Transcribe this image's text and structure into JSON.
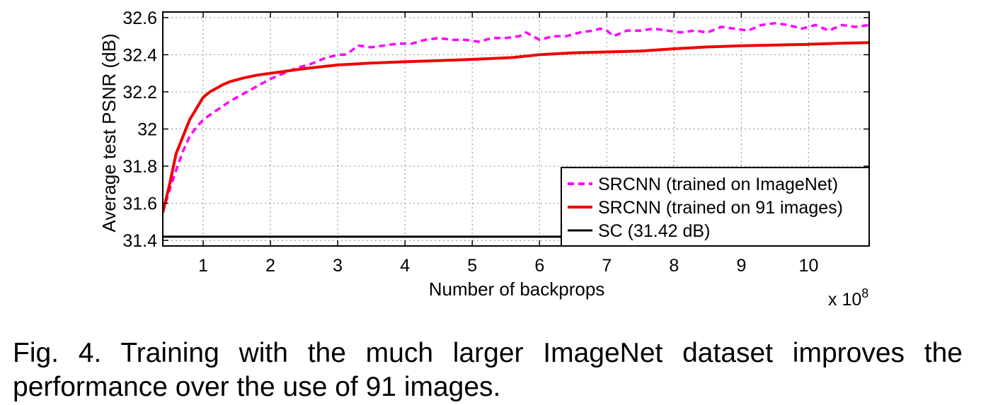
{
  "caption": "Fig. 4. Training with the much larger ImageNet dataset improves the performance over the use of 91 images.",
  "chart_data": {
    "type": "line",
    "xlabel": "Number of backprops",
    "ylabel": "Average test PSNR (dB)",
    "x_multiplier": "x 10",
    "x_multiplier_exponent": "8",
    "xlim": [
      0.4,
      10.9
    ],
    "ylim": [
      31.37,
      32.63
    ],
    "xticks": [
      1,
      2,
      3,
      4,
      5,
      6,
      7,
      8,
      9,
      10
    ],
    "xtick_labels": [
      "1",
      "2",
      "3",
      "4",
      "5",
      "6",
      "7",
      "8",
      "9",
      "10"
    ],
    "yticks": [
      31.4,
      31.6,
      31.8,
      32.0,
      32.2,
      32.4,
      32.6
    ],
    "ytick_labels": [
      "31.4",
      "31.6",
      "31.8",
      "32",
      "32.2",
      "32.4",
      "32.6"
    ],
    "grid": true,
    "legend_position": "bottom-right",
    "series": [
      {
        "name": "SRCNN (trained on ImageNet)",
        "color": "#ff00ff",
        "dash": "dashed",
        "x": [
          0.4,
          0.5,
          0.6,
          0.7,
          0.8,
          0.9,
          1.0,
          1.2,
          1.4,
          1.6,
          1.8,
          2.0,
          2.2,
          2.4,
          2.6,
          2.8,
          3.0,
          3.1,
          3.2,
          3.3,
          3.5,
          3.7,
          3.9,
          4.1,
          4.3,
          4.5,
          4.7,
          4.9,
          5.1,
          5.3,
          5.5,
          5.7,
          5.8,
          5.9,
          6.0,
          6.2,
          6.4,
          6.6,
          6.8,
          6.9,
          7.0,
          7.1,
          7.3,
          7.5,
          7.7,
          7.9,
          8.1,
          8.3,
          8.5,
          8.7,
          8.9,
          9.1,
          9.3,
          9.5,
          9.7,
          9.9,
          10.1,
          10.3,
          10.5,
          10.7,
          10.9
        ],
        "values": [
          31.55,
          31.67,
          31.78,
          31.88,
          31.96,
          32.01,
          32.05,
          32.1,
          32.15,
          32.19,
          32.23,
          32.27,
          32.3,
          32.33,
          32.35,
          32.38,
          32.4,
          32.4,
          32.42,
          32.45,
          32.44,
          32.45,
          32.46,
          32.46,
          32.48,
          32.49,
          32.48,
          32.48,
          32.47,
          32.49,
          32.49,
          32.5,
          32.52,
          32.5,
          32.48,
          32.5,
          32.5,
          32.52,
          32.53,
          32.54,
          32.53,
          32.5,
          32.53,
          32.53,
          32.54,
          32.53,
          32.52,
          32.53,
          32.52,
          32.55,
          32.54,
          32.53,
          32.56,
          32.57,
          32.56,
          32.54,
          32.56,
          32.53,
          32.56,
          32.55,
          32.56
        ]
      },
      {
        "name": "SRCNN (trained on 91 images)",
        "color": "#ee0000",
        "dash": "solid",
        "x": [
          0.4,
          0.5,
          0.6,
          0.7,
          0.8,
          0.9,
          1.0,
          1.1,
          1.2,
          1.3,
          1.4,
          1.6,
          1.8,
          2.0,
          2.2,
          2.5,
          3.0,
          3.5,
          4.0,
          4.5,
          5.0,
          5.5,
          5.6,
          6.0,
          6.5,
          7.0,
          7.5,
          8.0,
          8.5,
          9.0,
          9.5,
          10.0,
          10.5,
          10.9
        ],
        "values": [
          31.55,
          31.7,
          31.87,
          31.96,
          32.05,
          32.11,
          32.17,
          32.2,
          32.22,
          32.24,
          32.255,
          32.275,
          32.29,
          32.3,
          32.31,
          32.325,
          32.345,
          32.355,
          32.362,
          32.368,
          32.375,
          32.383,
          32.385,
          32.4,
          32.41,
          32.415,
          32.42,
          32.432,
          32.442,
          32.448,
          32.452,
          32.456,
          32.462,
          32.465
        ]
      },
      {
        "name": "SC (31.42 dB)",
        "color": "#000000",
        "dash": "solid",
        "x": [
          0.4,
          10.9
        ],
        "values": [
          31.42,
          31.42
        ]
      }
    ]
  }
}
